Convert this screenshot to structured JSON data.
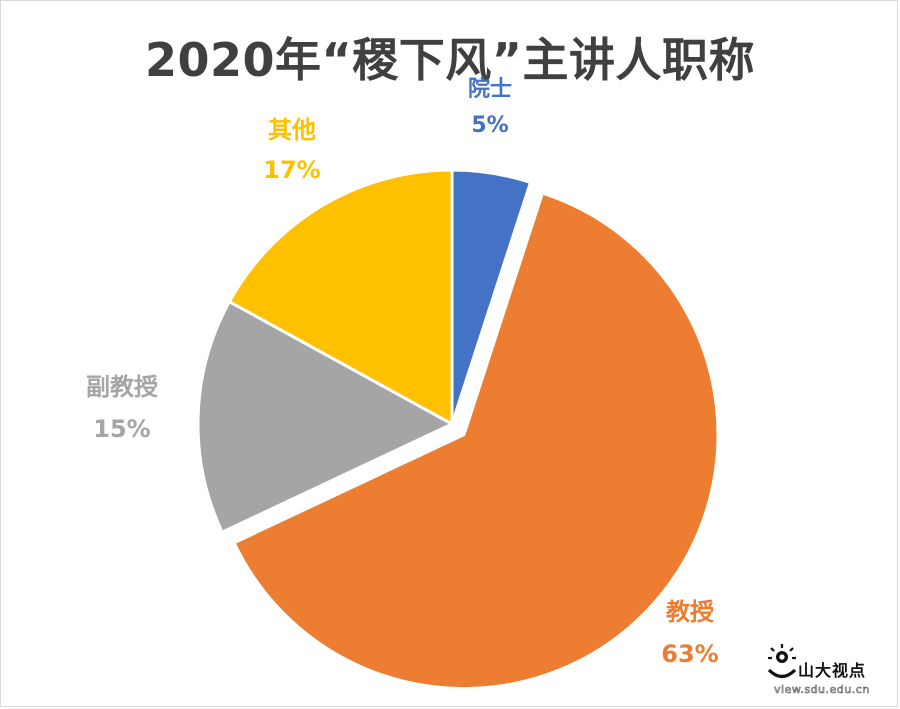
{
  "chart_data": {
    "type": "pie",
    "title": "2020年“稷下风”主讲人职称",
    "slices": [
      {
        "label": "院士",
        "value": 5,
        "value_label": "5%",
        "color": "#4472c4",
        "exploded": false
      },
      {
        "label": "教授",
        "value": 63,
        "value_label": "63%",
        "color": "#ed7d31",
        "exploded": true
      },
      {
        "label": "副教授",
        "value": 15,
        "value_label": "15%",
        "color": "#a5a5a5",
        "exploded": false
      },
      {
        "label": "其他",
        "value": 17,
        "value_label": "17%",
        "color": "#ffc000",
        "exploded": false
      }
    ],
    "legend": "none",
    "data_labels": "outside"
  },
  "watermark": {
    "name": "山大视点",
    "url": "view.sdu.edu.cn"
  }
}
